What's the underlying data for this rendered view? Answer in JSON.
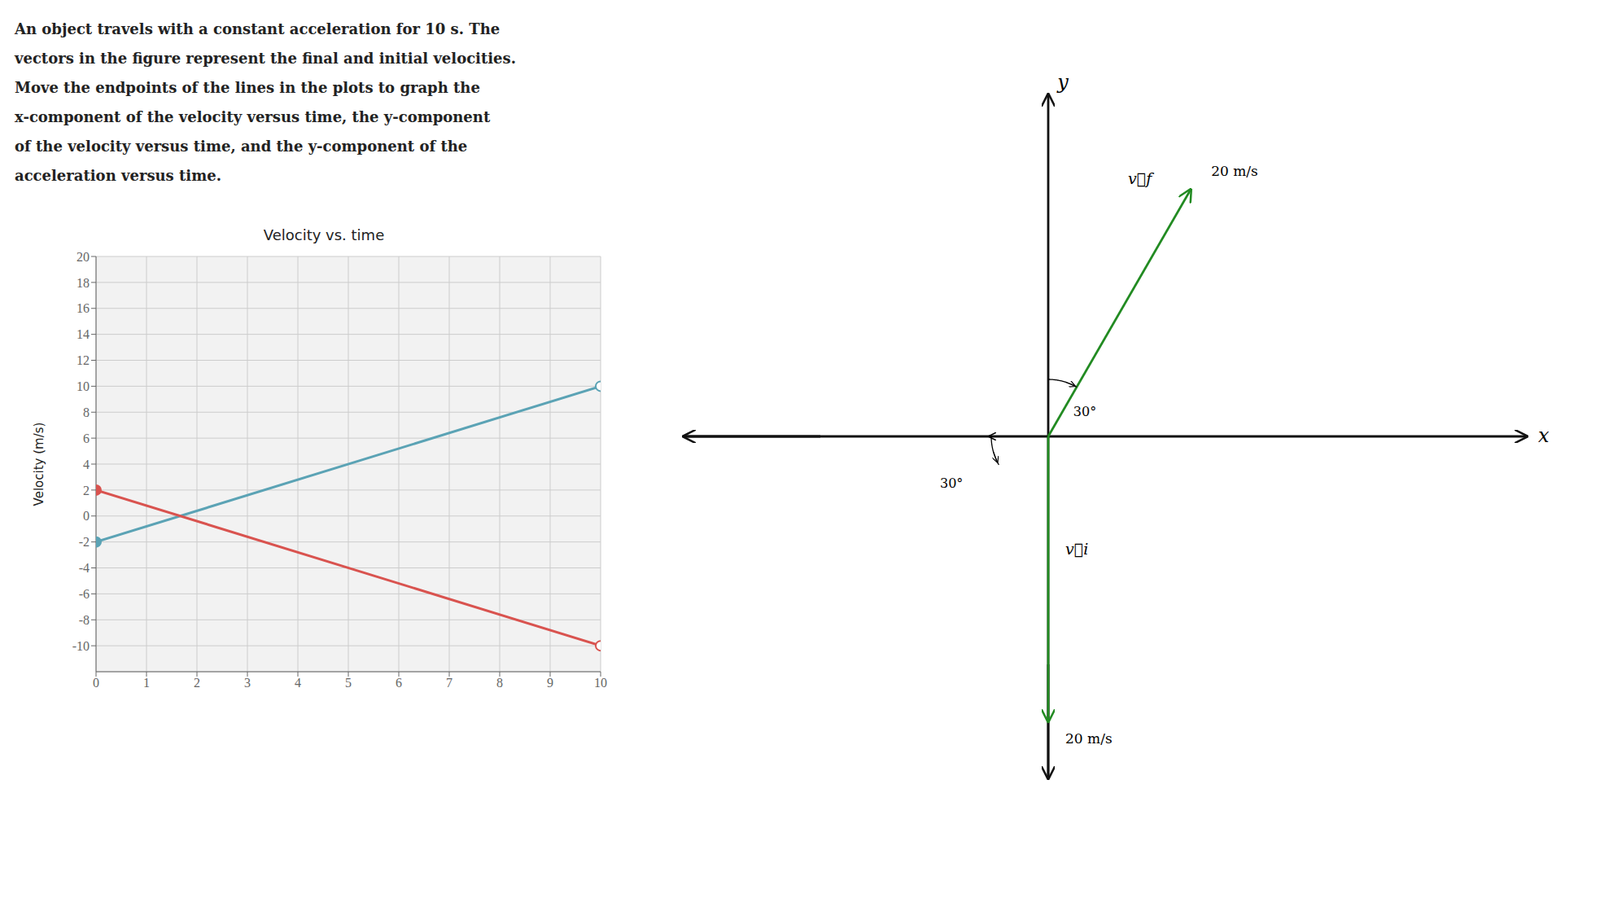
{
  "chart_data": {
    "type": "line",
    "title": "Velocity vs. time",
    "ylabel": "Velocity (m/s)",
    "x": [
      0,
      10
    ],
    "series": [
      {
        "color": "#5ba3b5",
        "values": [
          -2,
          10
        ]
      },
      {
        "color": "#d9534f",
        "values": [
          2,
          -10
        ]
      }
    ],
    "xlim": [
      0,
      10
    ],
    "ylim": [
      -12,
      20
    ],
    "xticks": [
      0,
      1,
      2,
      3,
      4,
      5,
      6,
      7,
      8,
      9,
      10
    ],
    "yticks": [
      -10,
      -8,
      -6,
      -4,
      -2,
      0,
      2,
      4,
      6,
      8,
      10,
      12,
      14,
      16,
      18,
      20
    ],
    "grid": true,
    "marker": "o",
    "annotations": [
      "An object travels with a constant acceleration for 10 s. The",
      "vectors in the figure represent the final and initial velocities.",
      "Move the endpoints of the lines in the plots to graph the",
      "x-component of the velocity versus time, the y-component",
      "of the velocity versus time, and the y-component of the",
      "acceleration versus time.",
      "x",
      "y",
      "v⃗f",
      "20 m/s",
      "30°",
      "v⃗i",
      "20 m/s",
      "30°"
    ]
  }
}
